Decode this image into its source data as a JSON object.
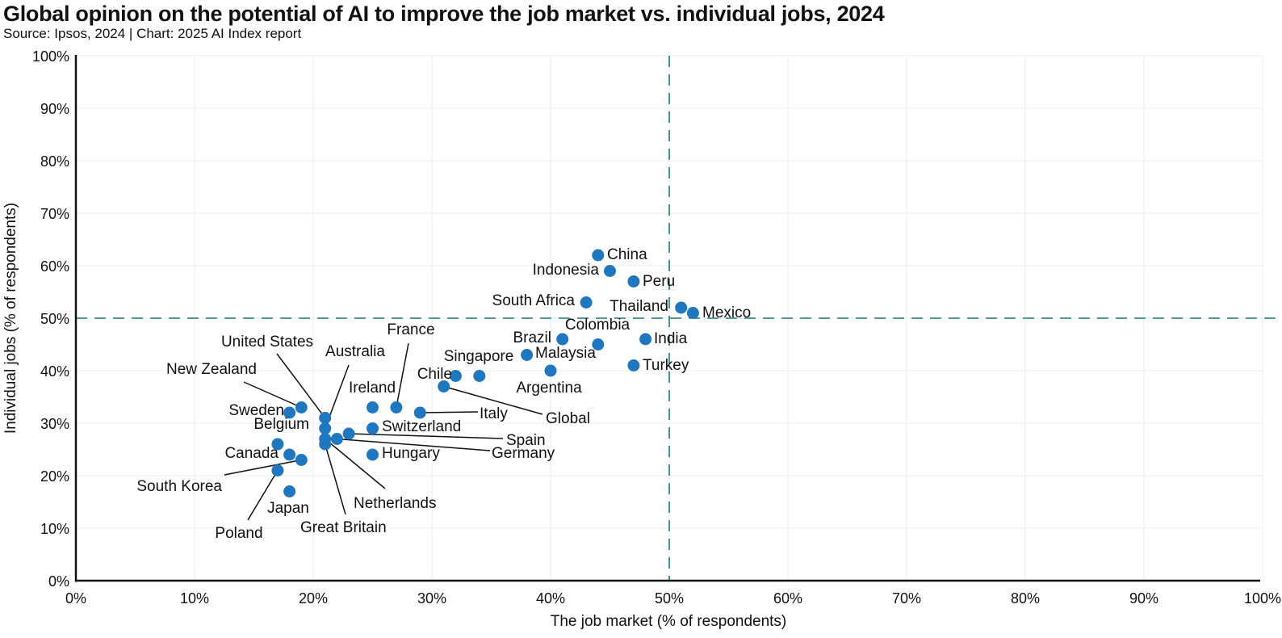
{
  "title": "Global opinion on the potential of AI to improve the job market vs. individual jobs, 2024",
  "subtitle": "Source: Ipsos, 2024 | Chart: 2025 AI Index report",
  "colors": {
    "point": "#1f77c0",
    "reference_line": "#1a7a7a",
    "grid": "#ececec",
    "axis": "#111111",
    "leader": "#111111"
  },
  "chart_data": {
    "type": "scatter",
    "title": "Global opinion on the potential of AI to improve the job market vs. individual jobs, 2024",
    "subtitle": "Source: Ipsos, 2024 | Chart: 2025 AI Index report",
    "xlabel": "The job market (% of respondents)",
    "ylabel": "Individual jobs (% of respondents)",
    "xlim": [
      0,
      100
    ],
    "ylim": [
      0,
      100
    ],
    "x_ticks": [
      "0%",
      "10%",
      "20%",
      "30%",
      "40%",
      "50%",
      "60%",
      "70%",
      "80%",
      "90%",
      "100%"
    ],
    "y_ticks": [
      "0%",
      "10%",
      "20%",
      "30%",
      "40%",
      "50%",
      "60%",
      "70%",
      "80%",
      "90%",
      "100%"
    ],
    "grid": true,
    "reference_lines": {
      "x": 50,
      "y": 50,
      "style": "dashed"
    },
    "points": [
      {
        "label": "China",
        "x": 44,
        "y": 62
      },
      {
        "label": "Indonesia",
        "x": 45,
        "y": 59
      },
      {
        "label": "Peru",
        "x": 47,
        "y": 57
      },
      {
        "label": "South Africa",
        "x": 43,
        "y": 53
      },
      {
        "label": "Thailand",
        "x": 51,
        "y": 52
      },
      {
        "label": "Mexico",
        "x": 52,
        "y": 51
      },
      {
        "label": "Brazil",
        "x": 41,
        "y": 46
      },
      {
        "label": "Colombia",
        "x": 44,
        "y": 45
      },
      {
        "label": "India",
        "x": 48,
        "y": 46
      },
      {
        "label": "Malaysia",
        "x": 38,
        "y": 43
      },
      {
        "label": "Turkey",
        "x": 47,
        "y": 41
      },
      {
        "label": "Argentina",
        "x": 40,
        "y": 40
      },
      {
        "label": "Singapore",
        "x": 34,
        "y": 39
      },
      {
        "label": "Chile",
        "x": 32,
        "y": 39
      },
      {
        "label": "Global",
        "x": 31,
        "y": 37
      },
      {
        "label": "Italy",
        "x": 29,
        "y": 32
      },
      {
        "label": "France",
        "x": 27,
        "y": 33
      },
      {
        "label": "Ireland",
        "x": 25,
        "y": 33
      },
      {
        "label": "Switzerland",
        "x": 25,
        "y": 29
      },
      {
        "label": "Hungary",
        "x": 25,
        "y": 24
      },
      {
        "label": "Spain",
        "x": 23,
        "y": 28
      },
      {
        "label": "Germany",
        "x": 22,
        "y": 27
      },
      {
        "label": "Netherlands",
        "x": 21,
        "y": 27
      },
      {
        "label": "Great Britain",
        "x": 21,
        "y": 26
      },
      {
        "label": "United States",
        "x": 21,
        "y": 31
      },
      {
        "label": "Australia",
        "x": 21,
        "y": 29
      },
      {
        "label": "New Zealand",
        "x": 19,
        "y": 33
      },
      {
        "label": "Sweden",
        "x": 18,
        "y": 32
      },
      {
        "label": "Belgium",
        "x": 17,
        "y": 26
      },
      {
        "label": "Canada",
        "x": 18,
        "y": 24
      },
      {
        "label": "South Korea",
        "x": 19,
        "y": 23
      },
      {
        "label": "Poland",
        "x": 17,
        "y": 21
      },
      {
        "label": "Japan",
        "x": 18,
        "y": 17
      }
    ]
  }
}
